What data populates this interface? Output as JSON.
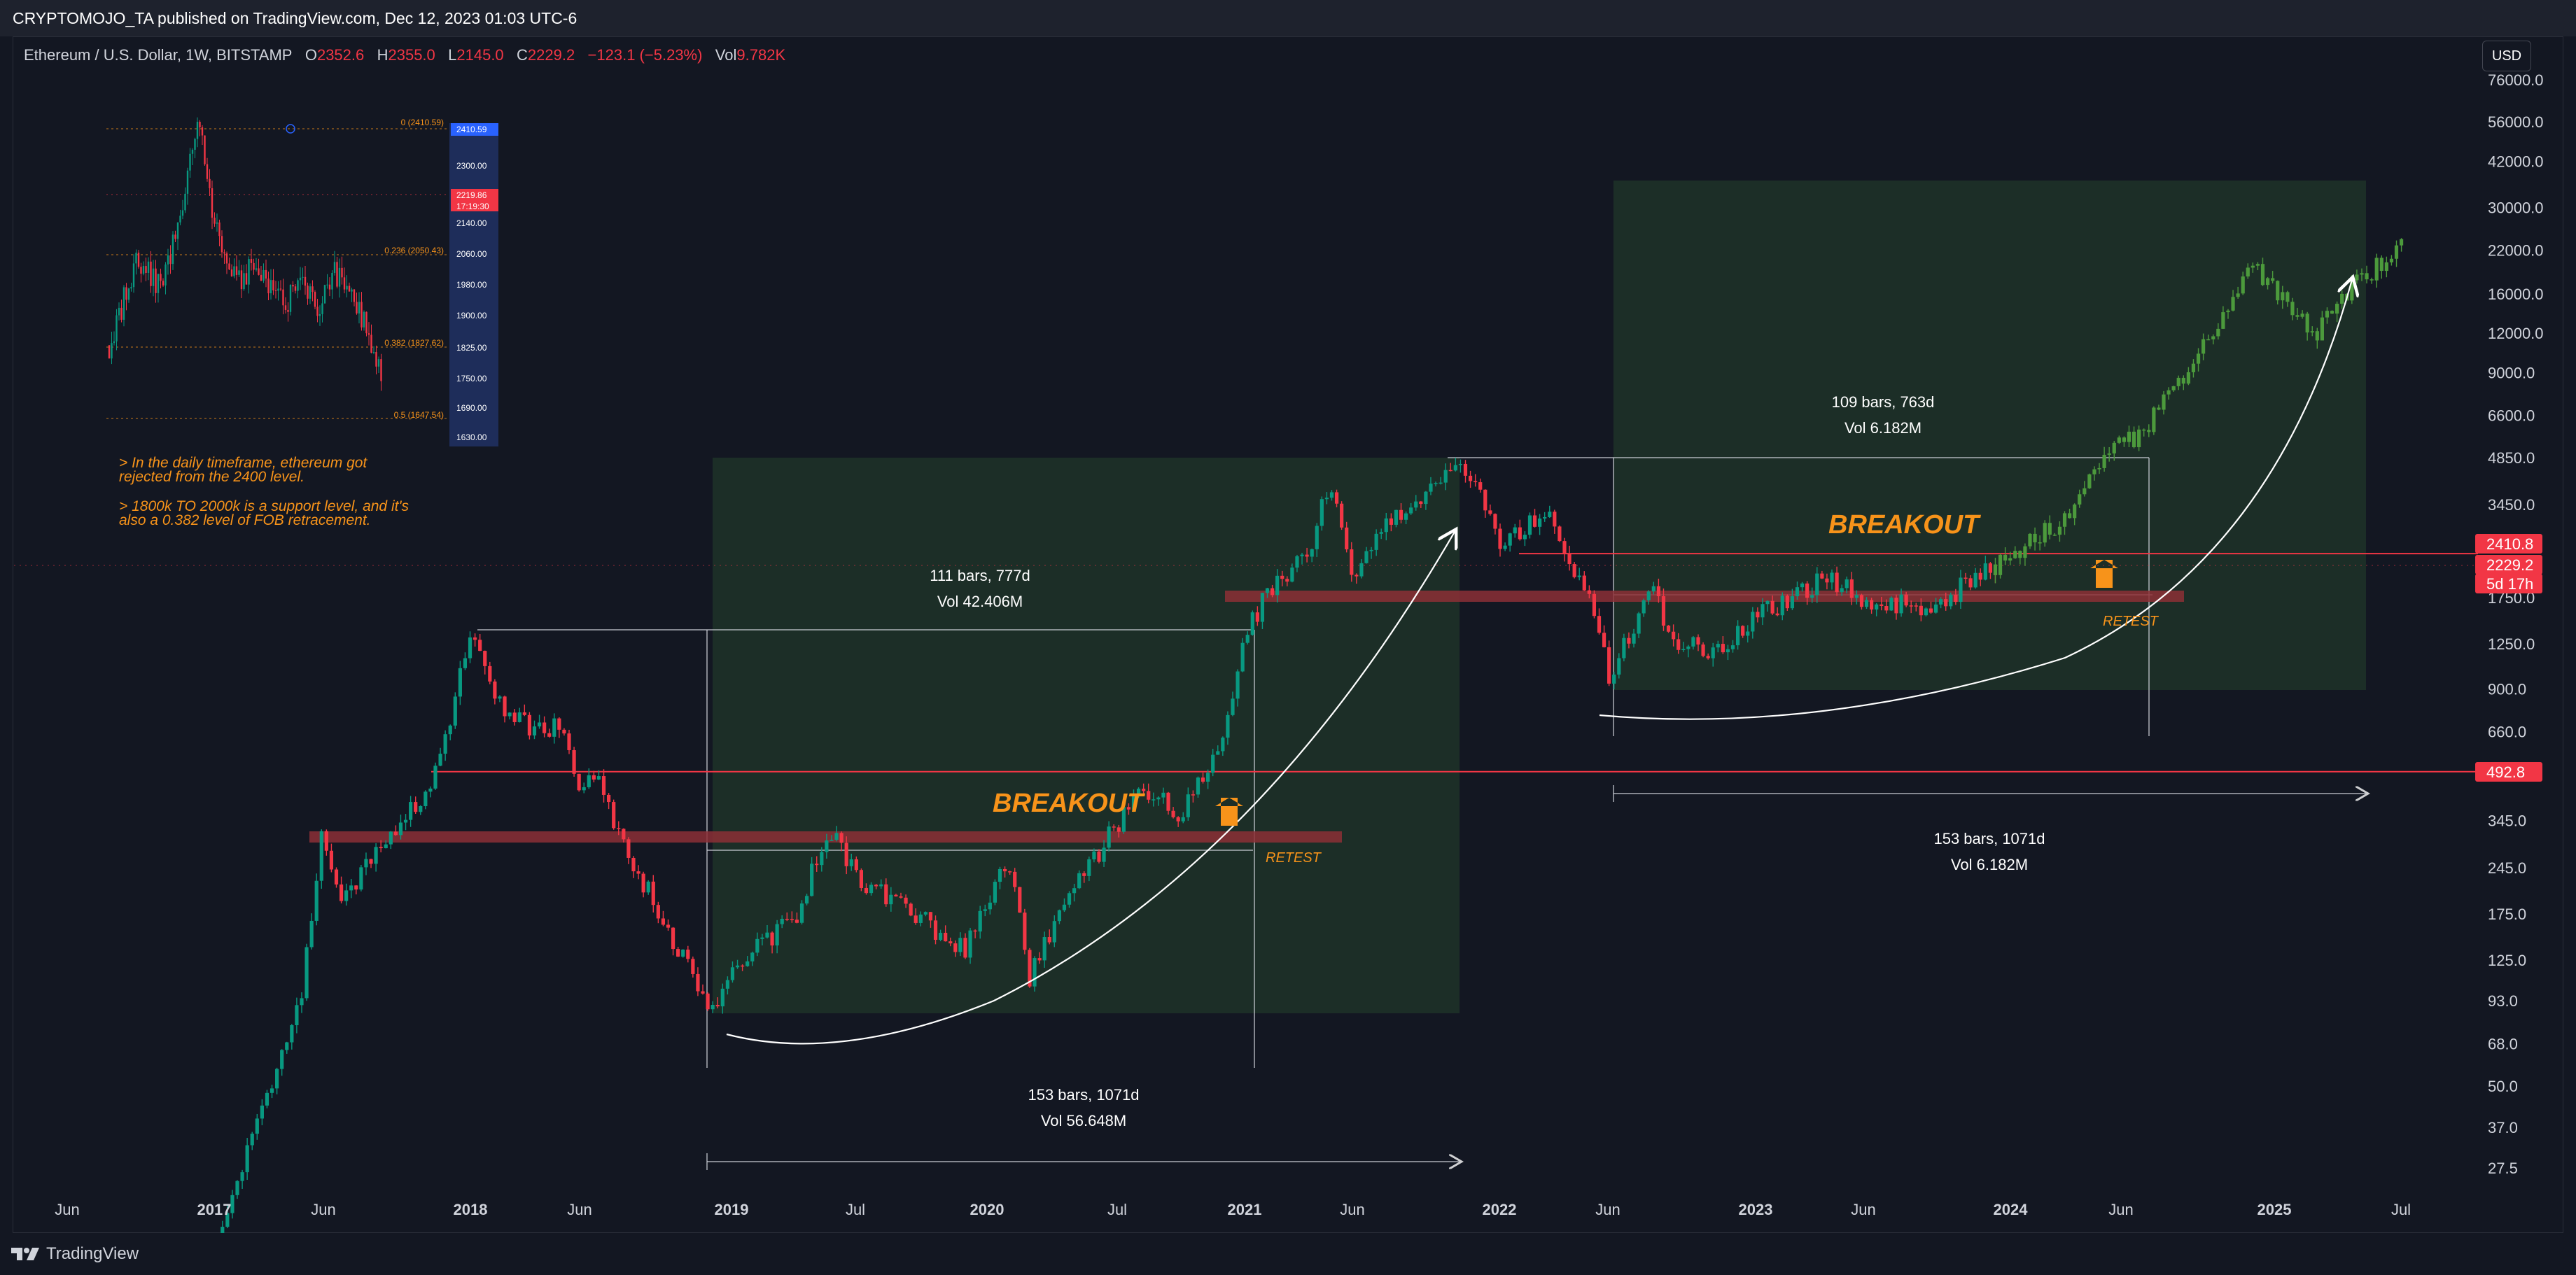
{
  "header": {
    "publisher_line": "CRYPTOMOJO_TA published on TradingView.com, Dec 12, 2023 01:03 UTC-6"
  },
  "legend": {
    "symbol": "Ethereum / U.S. Dollar, 1W, BITSTAMP",
    "o_label": "O",
    "o_value": "2352.6",
    "h_label": "H",
    "h_value": "2355.0",
    "l_label": "L",
    "l_value": "2145.0",
    "c_label": "C",
    "c_value": "2229.2",
    "change": "−123.1 (−5.23%)",
    "vol_label": "Vol",
    "vol_value": "9.782K"
  },
  "currency_button": "USD",
  "footer": {
    "brand": "TradingView"
  },
  "colors": {
    "background": "#131722",
    "up": "#089981",
    "down": "#f23645",
    "projection": "#4c9a3c",
    "annotation": "#f7931a",
    "zone": "#1e3328"
  },
  "chart_data": {
    "type": "candlestick",
    "title": "",
    "scale": "log",
    "y_ticks": [
      "76000.0",
      "56000.0",
      "42000.0",
      "30000.0",
      "22000.0",
      "16000.0",
      "12000.0",
      "9000.0",
      "6600.0",
      "4850.0",
      "3450.0",
      "1750.0",
      "1250.0",
      "900.0",
      "660.0",
      "345.0",
      "245.0",
      "175.0",
      "125.0",
      "93.0",
      "68.0",
      "50.0",
      "37.0",
      "27.5"
    ],
    "x_ticks": [
      "Jun",
      "2017",
      "Jun",
      "2018",
      "Jun",
      "2019",
      "Jul",
      "2020",
      "Jul",
      "2021",
      "Jun",
      "2022",
      "Jun",
      "2023",
      "Jun",
      "2024",
      "Jun",
      "2025",
      "Jul"
    ],
    "price_path": [
      [
        "2016-12",
        8
      ],
      [
        "2017-03",
        40
      ],
      [
        "2017-05",
        90
      ],
      [
        "2017-06",
        300
      ],
      [
        "2017-07",
        200
      ],
      [
        "2017-09",
        300
      ],
      [
        "2017-11",
        430
      ],
      [
        "2017-12",
        720
      ],
      [
        "2018-01",
        1400
      ],
      [
        "2018-02",
        850
      ],
      [
        "2018-04",
        650
      ],
      [
        "2018-05",
        700
      ],
      [
        "2018-06",
        450
      ],
      [
        "2018-07",
        470
      ],
      [
        "2018-08",
        290
      ],
      [
        "2018-09",
        220
      ],
      [
        "2018-11",
        120
      ],
      [
        "2018-12",
        87
      ],
      [
        "2019-02",
        135
      ],
      [
        "2019-04",
        165
      ],
      [
        "2019-05",
        250
      ],
      [
        "2019-06",
        310
      ],
      [
        "2019-07",
        220
      ],
      [
        "2019-09",
        190
      ],
      [
        "2019-11",
        150
      ],
      [
        "2019-12",
        135
      ],
      [
        "2020-02",
        270
      ],
      [
        "2020-03",
        110
      ],
      [
        "2020-05",
        210
      ],
      [
        "2020-07",
        330
      ],
      [
        "2020-08",
        430
      ],
      [
        "2020-10",
        370
      ],
      [
        "2020-12",
        600
      ],
      [
        "2021-01",
        1300
      ],
      [
        "2021-02",
        1800
      ],
      [
        "2021-04",
        2500
      ],
      [
        "2021-05",
        4100
      ],
      [
        "2021-06",
        2000
      ],
      [
        "2021-08",
        3200
      ],
      [
        "2021-09",
        3400
      ],
      [
        "2021-11",
        4700
      ],
      [
        "2021-12",
        3800
      ],
      [
        "2022-01",
        2500
      ],
      [
        "2022-03",
        3300
      ],
      [
        "2022-05",
        1800
      ],
      [
        "2022-06",
        1000
      ],
      [
        "2022-08",
        1900
      ],
      [
        "2022-09",
        1300
      ],
      [
        "2022-11",
        1150
      ],
      [
        "2023-01",
        1550
      ],
      [
        "2023-04",
        2000
      ],
      [
        "2023-06",
        1750
      ],
      [
        "2023-09",
        1600
      ],
      [
        "2023-10",
        1800
      ],
      [
        "2023-11",
        2050
      ],
      [
        "2023-12",
        2229
      ]
    ],
    "projection_path": [
      [
        "2023-12",
        2229
      ],
      [
        "2024-03",
        3000
      ],
      [
        "2024-05",
        4800
      ],
      [
        "2024-07",
        6000
      ],
      [
        "2024-09",
        9000
      ],
      [
        "2024-11",
        15000
      ],
      [
        "2024-12",
        21000
      ],
      [
        "2025-01",
        16000
      ],
      [
        "2025-02",
        14000
      ],
      [
        "2025-03",
        12000
      ],
      [
        "2025-04",
        15000
      ],
      [
        "2025-05",
        18000
      ],
      [
        "2025-06",
        20000
      ],
      [
        "2025-07",
        23000
      ]
    ],
    "horizontal_levels": [
      2410.8,
      2229.2,
      492.8
    ],
    "price_labels": [
      {
        "text": "2410.8",
        "value": 2410.8
      },
      {
        "text": "2229.2",
        "value": 2229.2
      },
      {
        "text": "5d 17h",
        "value": 2050
      },
      {
        "text": "492.8",
        "value": 492.8
      }
    ],
    "annotations": {
      "cycle1_breakout": "BREAKOUT",
      "cycle1_retest": "RETEST",
      "cycle2_breakout": "BREAKOUT",
      "cycle2_retest": "RETEST",
      "measure1_bars": "111 bars, 777d",
      "measure1_vol": "Vol 42.406M",
      "measure2_bars": "153 bars, 1071d",
      "measure2_vol": "Vol 56.648M",
      "measure3_bars": "109 bars, 763d",
      "measure3_vol": "Vol 6.182M",
      "measure4_bars": "153 bars, 1071d",
      "measure4_vol": "Vol 6.182M",
      "note_line1": "> In the daily timeframe, ethereum got",
      "note_line2": "rejected from the 2400 level.",
      "note_line3": "> 1800k TO 2000k is a support level, and it's",
      "note_line4": "also a 0.382 level of FOB retracement."
    },
    "inset": {
      "type": "candlestick",
      "y_ticks": [
        "2410.59",
        "2300.00",
        "2219.86",
        "17:19:30",
        "2140.00",
        "2060.00",
        "1980.00",
        "1900.00",
        "1825.00",
        "1750.00",
        "1690.00",
        "1630.00"
      ],
      "fib_levels": [
        "0 (2410.59)",
        "0.236 (2050.43)",
        "0.382 (1827.62)",
        "0.5 (1647.54)"
      ]
    }
  }
}
